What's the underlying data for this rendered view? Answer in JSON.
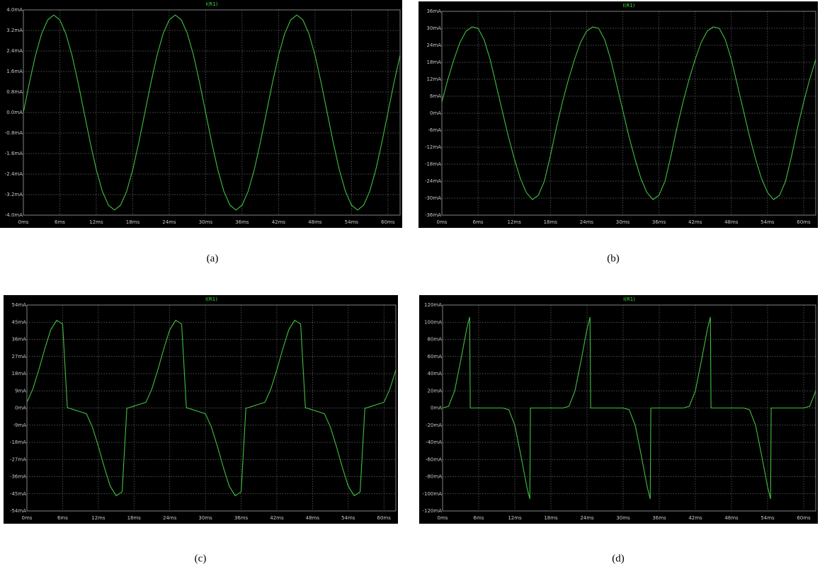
{
  "chart_data": [
    {
      "type": "line",
      "title": "I(R1)",
      "caption": "(a)",
      "color": "#3fbf3f",
      "grid": true,
      "x": [
        0,
        1,
        2,
        3,
        4,
        5,
        6,
        7,
        8,
        9,
        10,
        11,
        12,
        13,
        14,
        15,
        16,
        17,
        18,
        19,
        20,
        21,
        22,
        23,
        24,
        25,
        26,
        27,
        28,
        29,
        30,
        31,
        32,
        33,
        34,
        35,
        36,
        37,
        38,
        39,
        40,
        41,
        42,
        43,
        44,
        45,
        46,
        47,
        48,
        49,
        50,
        51,
        52,
        53,
        54,
        55,
        56,
        57,
        58,
        59,
        60,
        61,
        62
      ],
      "values": [
        0,
        1.17,
        2.23,
        3.07,
        3.61,
        3.8,
        3.61,
        3.07,
        2.23,
        1.17,
        0,
        -1.17,
        -2.23,
        -3.07,
        -3.61,
        -3.8,
        -3.61,
        -3.07,
        -2.23,
        -1.17,
        0,
        1.17,
        2.23,
        3.07,
        3.61,
        3.8,
        3.61,
        3.07,
        2.23,
        1.17,
        0,
        -1.17,
        -2.23,
        -3.07,
        -3.61,
        -3.8,
        -3.61,
        -3.07,
        -2.23,
        -1.17,
        0,
        1.17,
        2.23,
        3.07,
        3.61,
        3.8,
        3.61,
        3.07,
        2.23,
        1.17,
        0,
        -1.17,
        -2.23,
        -3.07,
        -3.61,
        -3.8,
        -3.61,
        -3.07,
        -2.23,
        -1.17,
        0,
        1.17,
        2.23
      ],
      "xlim": [
        0,
        62
      ],
      "xticks": [
        {
          "value": 0,
          "label": "0ms"
        },
        {
          "value": 6,
          "label": "6ms"
        },
        {
          "value": 12,
          "label": "12ms"
        },
        {
          "value": 18,
          "label": "18ms"
        },
        {
          "value": 24,
          "label": "24ms"
        },
        {
          "value": 30,
          "label": "30ms"
        },
        {
          "value": 36,
          "label": "36ms"
        },
        {
          "value": 42,
          "label": "42ms"
        },
        {
          "value": 48,
          "label": "48ms"
        },
        {
          "value": 54,
          "label": "54ms"
        },
        {
          "value": 60,
          "label": "60ms"
        }
      ],
      "ylim": [
        -4.0,
        4.0
      ],
      "yticks": [
        {
          "value": 4.0,
          "label": "4.0mA"
        },
        {
          "value": 3.2,
          "label": "3.2mA"
        },
        {
          "value": 2.4,
          "label": "2.4mA"
        },
        {
          "value": 1.6,
          "label": "1.6mA"
        },
        {
          "value": 0.8,
          "label": "0.8mA"
        },
        {
          "value": 0,
          "label": "0.0mA"
        },
        {
          "value": -0.8,
          "label": "-0.8mA"
        },
        {
          "value": -1.6,
          "label": "-1.6mA"
        },
        {
          "value": -2.4,
          "label": "-2.4mA"
        },
        {
          "value": -3.2,
          "label": "-3.2mA"
        },
        {
          "value": -4.0,
          "label": "-4.0mA"
        }
      ]
    },
    {
      "type": "line",
      "title": "I(R1)",
      "caption": "(b)",
      "color": "#3fbf3f",
      "grid": true,
      "x": [
        0,
        1,
        2,
        3,
        4,
        5,
        6,
        7,
        8,
        9,
        10,
        11,
        12,
        13,
        14,
        15,
        16,
        17,
        18,
        19,
        20,
        21,
        22,
        23,
        24,
        25,
        26,
        27,
        28,
        29,
        30,
        31,
        32,
        33,
        34,
        35,
        36,
        37,
        38,
        39,
        40,
        41,
        42,
        43,
        44,
        45,
        46,
        47,
        48,
        49,
        50,
        51,
        52,
        53,
        54,
        55,
        56,
        57,
        58,
        59,
        60,
        61,
        62
      ],
      "values": [
        4,
        12,
        19,
        25,
        29,
        30.5,
        30,
        26,
        19,
        10,
        1,
        -8,
        -16,
        -23,
        -28,
        -30.5,
        -29,
        -24,
        -15,
        -5,
        4,
        12,
        19,
        25,
        29,
        30.5,
        30,
        26,
        19,
        10,
        1,
        -8,
        -16,
        -23,
        -28,
        -30.5,
        -29,
        -24,
        -15,
        -5,
        4,
        12,
        19,
        25,
        29,
        30.5,
        30,
        26,
        19,
        10,
        1,
        -8,
        -16,
        -23,
        -28,
        -30.5,
        -29,
        -24,
        -15,
        -5,
        4,
        12,
        19
      ],
      "xlim": [
        0,
        62
      ],
      "xticks": [
        {
          "value": 0,
          "label": "0ms"
        },
        {
          "value": 6,
          "label": "6ms"
        },
        {
          "value": 12,
          "label": "12ms"
        },
        {
          "value": 18,
          "label": "18ms"
        },
        {
          "value": 24,
          "label": "24ms"
        },
        {
          "value": 30,
          "label": "30ms"
        },
        {
          "value": 36,
          "label": "36ms"
        },
        {
          "value": 42,
          "label": "42ms"
        },
        {
          "value": 48,
          "label": "48ms"
        },
        {
          "value": 54,
          "label": "54ms"
        },
        {
          "value": 60,
          "label": "60ms"
        }
      ],
      "ylim": [
        -36,
        36
      ],
      "yticks": [
        {
          "value": 36,
          "label": "36mA"
        },
        {
          "value": 30,
          "label": "30mA"
        },
        {
          "value": 24,
          "label": "24mA"
        },
        {
          "value": 18,
          "label": "18mA"
        },
        {
          "value": 12,
          "label": "12mA"
        },
        {
          "value": 6,
          "label": "6mA"
        },
        {
          "value": 0,
          "label": "0mA"
        },
        {
          "value": -6,
          "label": "-6mA"
        },
        {
          "value": -12,
          "label": "-12mA"
        },
        {
          "value": -18,
          "label": "-18mA"
        },
        {
          "value": -24,
          "label": "-24mA"
        },
        {
          "value": -30,
          "label": "-30mA"
        },
        {
          "value": -36,
          "label": "-36mA"
        }
      ]
    },
    {
      "type": "line",
      "title": "I(R1)",
      "caption": "(c)",
      "color": "#3fbf3f",
      "grid": true,
      "x": [
        0,
        1,
        2,
        3,
        4,
        5,
        6,
        6.8,
        7,
        8,
        9,
        10,
        11,
        12,
        13,
        14,
        15,
        16,
        16.8,
        17,
        18,
        19,
        20,
        21,
        22,
        23,
        24,
        25,
        26,
        26.8,
        27,
        28,
        29,
        30,
        31,
        32,
        33,
        34,
        35,
        36,
        36.8,
        37,
        38,
        39,
        40,
        41,
        42,
        43,
        44,
        45,
        46,
        46.8,
        47,
        48,
        49,
        50,
        51,
        52,
        53,
        54,
        55,
        56,
        56.8,
        57,
        58,
        59,
        60,
        61,
        62
      ],
      "values": [
        3,
        10,
        20,
        31,
        41,
        46,
        44,
        0,
        0,
        -1,
        -2,
        -3,
        -10,
        -20,
        -31,
        -41,
        -46,
        -44,
        0,
        0,
        1,
        2,
        3,
        10,
        20,
        31,
        41,
        46,
        44,
        0,
        0,
        -1,
        -2,
        -3,
        -10,
        -20,
        -31,
        -41,
        -46,
        -44,
        0,
        0,
        1,
        2,
        3,
        10,
        20,
        31,
        41,
        46,
        44,
        0,
        0,
        -1,
        -2,
        -3,
        -10,
        -20,
        -31,
        -41,
        -46,
        -44,
        0,
        0,
        1,
        2,
        3,
        10,
        20
      ],
      "xlim": [
        0,
        62
      ],
      "xticks": [
        {
          "value": 0,
          "label": "0ms"
        },
        {
          "value": 6,
          "label": "6ms"
        },
        {
          "value": 12,
          "label": "12ms"
        },
        {
          "value": 18,
          "label": "18ms"
        },
        {
          "value": 24,
          "label": "24ms"
        },
        {
          "value": 30,
          "label": "30ms"
        },
        {
          "value": 36,
          "label": "36ms"
        },
        {
          "value": 42,
          "label": "42ms"
        },
        {
          "value": 48,
          "label": "48ms"
        },
        {
          "value": 54,
          "label": "54ms"
        },
        {
          "value": 60,
          "label": "60ms"
        }
      ],
      "ylim": [
        -54,
        54
      ],
      "yticks": [
        {
          "value": 54,
          "label": "54mA"
        },
        {
          "value": 45,
          "label": "45mA"
        },
        {
          "value": 36,
          "label": "36mA"
        },
        {
          "value": 27,
          "label": "27mA"
        },
        {
          "value": 18,
          "label": "18mA"
        },
        {
          "value": 9,
          "label": "9mA"
        },
        {
          "value": 0,
          "label": "0mA"
        },
        {
          "value": -9,
          "label": "-9mA"
        },
        {
          "value": -18,
          "label": "-18mA"
        },
        {
          "value": -27,
          "label": "-27mA"
        },
        {
          "value": -36,
          "label": "-36mA"
        },
        {
          "value": -45,
          "label": "-45mA"
        },
        {
          "value": -54,
          "label": "-54mA"
        }
      ]
    },
    {
      "type": "line",
      "title": "I(R1)",
      "caption": "(d)",
      "color": "#3fbf3f",
      "grid": true,
      "x": [
        0,
        1,
        2,
        3,
        4,
        4.5,
        4.6,
        10,
        11,
        12,
        13,
        14,
        14.5,
        14.6,
        20,
        21,
        22,
        23,
        24,
        24.5,
        24.6,
        30,
        31,
        32,
        33,
        34,
        34.5,
        34.6,
        40,
        41,
        42,
        43,
        44,
        44.5,
        44.6,
        50,
        51,
        52,
        53,
        54,
        54.5,
        54.6,
        60,
        61,
        62
      ],
      "values": [
        0,
        2,
        20,
        55,
        92,
        106,
        0,
        0,
        -2,
        -20,
        -55,
        -92,
        -106,
        0,
        0,
        2,
        20,
        55,
        92,
        106,
        0,
        0,
        -2,
        -20,
        -55,
        -92,
        -106,
        0,
        0,
        2,
        20,
        55,
        92,
        106,
        0,
        0,
        -2,
        -20,
        -55,
        -92,
        -106,
        0,
        0,
        2,
        20
      ],
      "xlim": [
        0,
        62
      ],
      "xticks": [
        {
          "value": 0,
          "label": "0ms"
        },
        {
          "value": 6,
          "label": "6ms"
        },
        {
          "value": 12,
          "label": "12ms"
        },
        {
          "value": 18,
          "label": "18ms"
        },
        {
          "value": 24,
          "label": "24ms"
        },
        {
          "value": 30,
          "label": "30ms"
        },
        {
          "value": 36,
          "label": "36ms"
        },
        {
          "value": 42,
          "label": "42ms"
        },
        {
          "value": 48,
          "label": "48ms"
        },
        {
          "value": 54,
          "label": "54ms"
        },
        {
          "value": 60,
          "label": "60ms"
        }
      ],
      "ylim": [
        -120,
        120
      ],
      "yticks": [
        {
          "value": 120,
          "label": "120mA"
        },
        {
          "value": 100,
          "label": "100mA"
        },
        {
          "value": 80,
          "label": "80mA"
        },
        {
          "value": 60,
          "label": "60mA"
        },
        {
          "value": 40,
          "label": "40mA"
        },
        {
          "value": 20,
          "label": "20mA"
        },
        {
          "value": 0,
          "label": "0mA"
        },
        {
          "value": -20,
          "label": "-20mA"
        },
        {
          "value": -40,
          "label": "-40mA"
        },
        {
          "value": -60,
          "label": "-60mA"
        },
        {
          "value": -80,
          "label": "-80mA"
        },
        {
          "value": -100,
          "label": "-100mA"
        },
        {
          "value": -120,
          "label": "-120mA"
        }
      ]
    }
  ]
}
